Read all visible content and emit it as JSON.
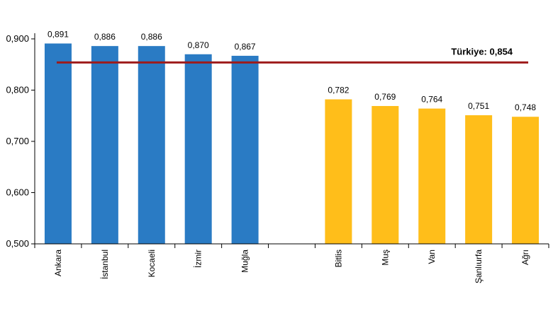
{
  "chart_data": {
    "type": "bar",
    "categories": [
      "Ankara",
      "İstanbul",
      "Kocaeli",
      "İzmir",
      "Muğla",
      "",
      "Bitlis",
      "Muş",
      "Van",
      "Şanlıurfa",
      "Ağrı"
    ],
    "values": [
      0.891,
      0.886,
      0.886,
      0.87,
      0.867,
      null,
      0.782,
      0.769,
      0.764,
      0.751,
      0.748
    ],
    "value_labels": [
      "0,891",
      "0,886",
      "0,886",
      "0,870",
      "0,867",
      "",
      "0,782",
      "0,769",
      "0,764",
      "0,751",
      "0,748"
    ],
    "bar_groups": [
      "top",
      "top",
      "top",
      "top",
      "top",
      "gap",
      "bottom",
      "bottom",
      "bottom",
      "bottom",
      "bottom"
    ],
    "colors": {
      "top": "#2a7bc4",
      "bottom": "#ffbe1a",
      "reference_line": "#9e1b1b",
      "axis": "#000000"
    },
    "ylim": [
      0.5,
      0.9
    ],
    "yticks": [
      0.5,
      0.6,
      0.7,
      0.8,
      0.9
    ],
    "ytick_labels": [
      "0,500",
      "0,600",
      "0,700",
      "0,800",
      "0,900"
    ],
    "reference_line": {
      "value": 0.854,
      "label": "Türkiye: 0,854"
    },
    "grid": false,
    "legend": "none"
  }
}
